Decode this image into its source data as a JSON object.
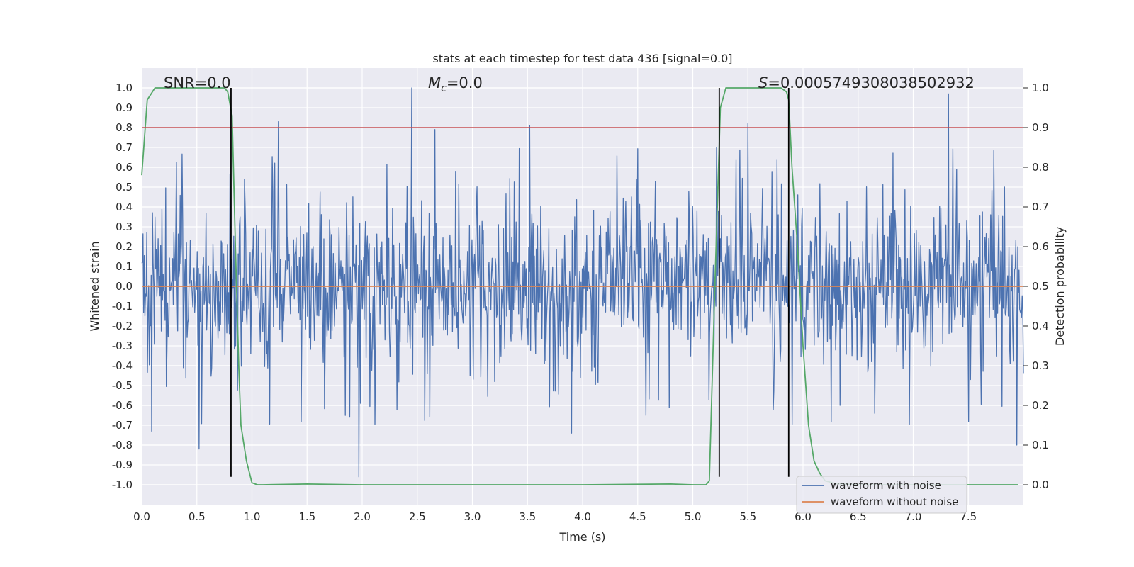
{
  "chart_data": {
    "type": "line",
    "title": "stats at each timestep for test data 436 [signal=0.0]",
    "xlabel": "Time (s)",
    "ylabel": "Whitened strain",
    "y2label": "Detection probability",
    "xlim": [
      0.0,
      8.0
    ],
    "ylim": [
      -1.1,
      1.1
    ],
    "y2lim": [
      -0.05,
      1.05
    ],
    "x_ticks": [
      "0.0",
      "0.5",
      "1.0",
      "1.5",
      "2.0",
      "2.5",
      "3.0",
      "3.5",
      "4.0",
      "4.5",
      "5.0",
      "5.5",
      "6.0",
      "6.5",
      "7.0",
      "7.5"
    ],
    "y_ticks": [
      "-1.0",
      "-0.9",
      "-0.8",
      "-0.7",
      "-0.6",
      "-0.5",
      "-0.4",
      "-0.3",
      "-0.2",
      "-0.1",
      "0.0",
      "0.1",
      "0.2",
      "0.3",
      "0.4",
      "0.5",
      "0.6",
      "0.7",
      "0.8",
      "0.9",
      "1.0"
    ],
    "y2_ticks": [
      "0.0",
      "0.1",
      "0.2",
      "0.3",
      "0.4",
      "0.5",
      "0.6",
      "0.7",
      "0.8",
      "0.9",
      "1.0"
    ],
    "annotations": {
      "snr_label": "SNR=0.0",
      "mc_label": "M",
      "mc_sub": "c",
      "mc_value": "=0.0",
      "s_label": "S",
      "s_value": "=0.0005749308038502932"
    },
    "threshold": {
      "value": 0.9,
      "axis": "y2",
      "color": "#c44e52"
    },
    "vertical_lines": [
      0.81,
      5.24,
      5.87
    ],
    "series": [
      {
        "name": "waveform with noise",
        "color": "#4c72b0",
        "axis": "y",
        "kind": "noise",
        "x_range": [
          0.0,
          8.0
        ],
        "samples": 1400,
        "band_sigma": 0.19,
        "peaks": [
          {
            "x": 2.45,
            "y": 1.0
          },
          {
            "x": 7.32,
            "y": 0.97
          },
          {
            "x": 1.24,
            "y": 0.83
          },
          {
            "x": 5.5,
            "y": 0.82
          },
          {
            "x": 3.52,
            "y": 0.81
          },
          {
            "x": 2.66,
            "y": 0.79
          },
          {
            "x": 1.97,
            "y": -0.96
          },
          {
            "x": 0.52,
            "y": -0.82
          },
          {
            "x": 0.09,
            "y": -0.73
          },
          {
            "x": 7.94,
            "y": -0.8
          },
          {
            "x": 3.9,
            "y": -0.74
          }
        ]
      },
      {
        "name": "waveform without noise",
        "color": "#dd8452",
        "axis": "y",
        "x": [
          0.0,
          8.0
        ],
        "y": [
          0.0,
          0.0
        ]
      },
      {
        "name": "detection probability",
        "color": "#55a868",
        "axis": "y2",
        "legend": false,
        "x": [
          0.0,
          0.05,
          0.12,
          0.2,
          0.3,
          0.5,
          0.7,
          0.75,
          0.78,
          0.82,
          0.85,
          0.88,
          0.9,
          0.95,
          1.0,
          1.05,
          1.1,
          1.5,
          2.0,
          3.0,
          4.0,
          4.8,
          5.0,
          5.12,
          5.15,
          5.2,
          5.25,
          5.3,
          5.4,
          5.5,
          5.7,
          5.8,
          5.85,
          5.87,
          5.9,
          5.95,
          6.0,
          6.05,
          6.1,
          6.15,
          6.2,
          6.3,
          6.5,
          7.0,
          7.5,
          7.95
        ],
        "y": [
          0.78,
          0.97,
          1.0,
          1.0,
          1.0,
          1.0,
          1.0,
          1.0,
          0.99,
          0.93,
          0.6,
          0.3,
          0.15,
          0.06,
          0.005,
          0.0,
          0.0,
          0.002,
          0.0,
          0.0,
          0.0,
          0.002,
          0.0,
          0.0,
          0.01,
          0.5,
          0.95,
          1.0,
          1.0,
          1.0,
          1.0,
          1.0,
          0.99,
          0.97,
          0.8,
          0.6,
          0.35,
          0.15,
          0.06,
          0.03,
          0.01,
          0.003,
          0.0,
          0.0,
          0.0,
          0.0
        ]
      }
    ],
    "legend_position": "lower-right"
  }
}
